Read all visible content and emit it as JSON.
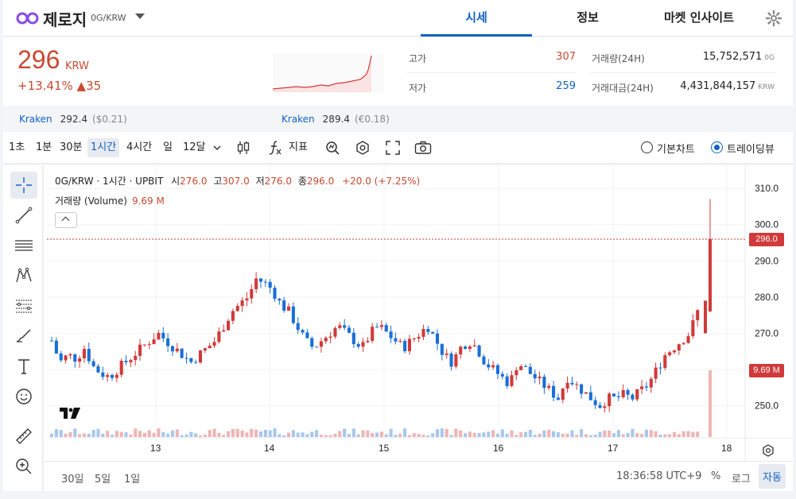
{
  "header": {
    "coin_name": "제로지",
    "pair": "0G/KRW",
    "tabs": [
      "시세",
      "정보",
      "마켓 인사이트"
    ],
    "active_tab": 0
  },
  "summary": {
    "price": "296",
    "unit": "KRW",
    "change": "+13.41% ▲35",
    "high_label": "고가",
    "high_value": "307",
    "low_label": "저가",
    "low_value": "259",
    "volume_label": "거래량(24H)",
    "volume_value": "15,752,571",
    "volume_unit": "0G",
    "turnover_label": "거래대금(24H)",
    "turnover_value": "4,431,844,157",
    "turnover_unit": "KRW"
  },
  "kraken": [
    {
      "name": "Kraken",
      "price": "292.4",
      "sub": "($0.21)"
    },
    {
      "name": "Kraken",
      "price": "289.4",
      "sub": "(€0.18)"
    }
  ],
  "toolbar": {
    "intervals": [
      "1초",
      "1분",
      "30분",
      "1시간",
      "4시간",
      "일",
      "12달"
    ],
    "active_interval": "1시간",
    "indicator_label": "지표",
    "basic_chart_label": "기본차트",
    "trading_view_label": "트레이딩뷰"
  },
  "chart_legend": {
    "title": "0G/KRW · 1시간 · UPBIT",
    "open_label": "시",
    "open": "276.0",
    "high_label": "고",
    "high": "307.0",
    "low_label": "저",
    "low": "276.0",
    "close_label": "종",
    "close": "296.0",
    "change": "+20.0 (+7.25%)",
    "volume_label": "거래량 (Volume)",
    "volume_value": "9.69 M"
  },
  "chart_data": {
    "type": "candlestick",
    "title": "0G/KRW · 1시간 · UPBIT",
    "x_ticks": [
      "13",
      "14",
      "15",
      "16",
      "17",
      "18"
    ],
    "y_ticks": [
      "250.0",
      "260.0",
      "270.0",
      "280.0",
      "290.0",
      "300.0",
      "310.0"
    ],
    "ylim": [
      244,
      312
    ],
    "current_price_label": "296.0",
    "volume_label": "9.69 M",
    "close_path": [
      268,
      262,
      264,
      263,
      266,
      261,
      259,
      258,
      260,
      262,
      264,
      266,
      268,
      270,
      268,
      266,
      264,
      262,
      264,
      266,
      268,
      272,
      276,
      278,
      280,
      285,
      284,
      282,
      278,
      276,
      272,
      268,
      266,
      268,
      270,
      272,
      270,
      268,
      266,
      270,
      272,
      270,
      268,
      266,
      268,
      270,
      272,
      268,
      264,
      262,
      266,
      268,
      266,
      262,
      260,
      258,
      256,
      262,
      260,
      258,
      256,
      254,
      252,
      258,
      256,
      254,
      252,
      250,
      252,
      252,
      253,
      252,
      254,
      256,
      260,
      264,
      266,
      268,
      270,
      276,
      296
    ]
  },
  "bottom": {
    "ranges": [
      "30일",
      "5일",
      "1일"
    ],
    "time": "18:36:58 UTC+9",
    "percent": "%",
    "log": "로그",
    "auto": "자동"
  }
}
